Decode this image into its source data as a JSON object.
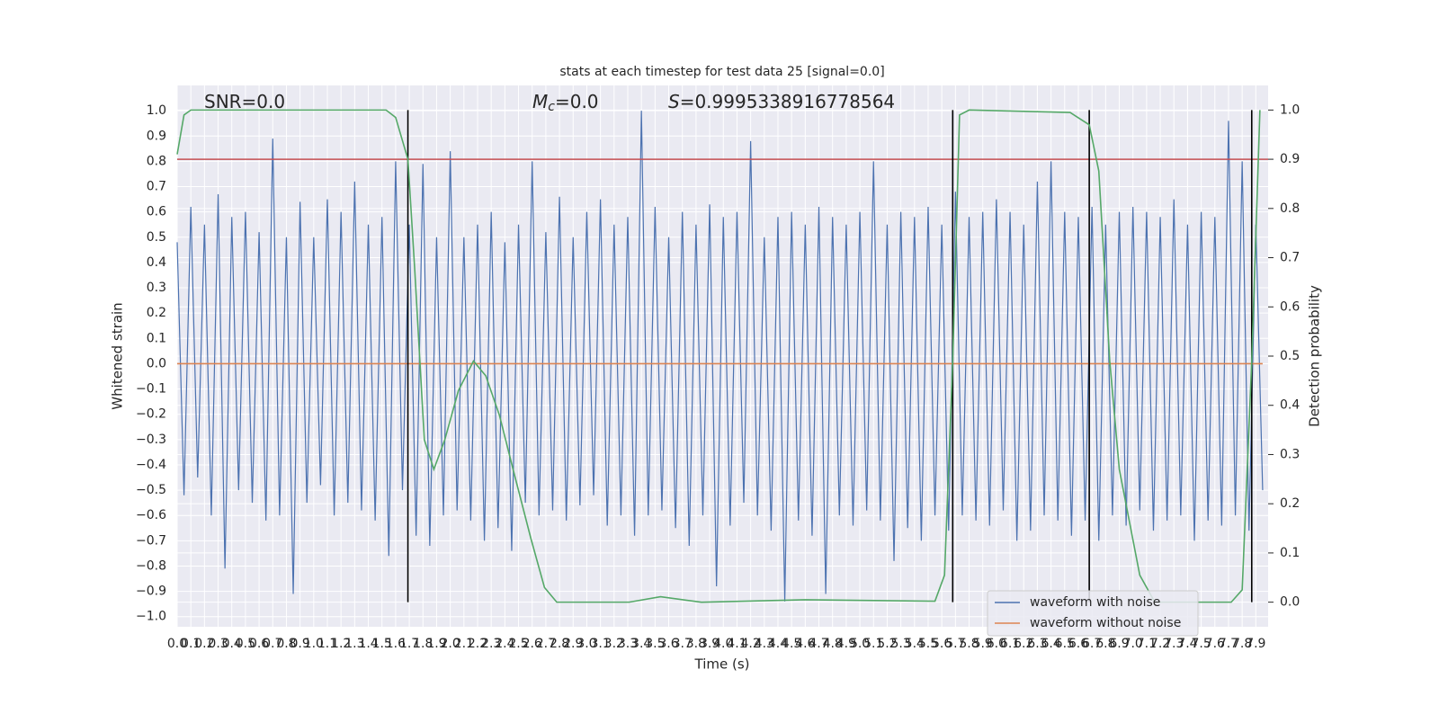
{
  "chart_data": {
    "type": "line",
    "title": "stats at each timestep for test data 25 [signal=0.0]",
    "x_label": "Time (s)",
    "y_label": "Whitened strain",
    "y2_label": "Detection probability",
    "annotations": [
      {
        "parts": [
          "SNR=0.0"
        ],
        "x": 0.2
      },
      {
        "parts": [
          "M",
          "c",
          "=0.0"
        ],
        "x": 2.6
      },
      {
        "parts": [
          "S",
          "=0.9995338916778564"
        ],
        "x": 3.6
      }
    ],
    "xlim": [
      0,
      7.99
    ],
    "ylim": [
      -1.04,
      1.1
    ],
    "y2lim": [
      -0.05,
      1.05
    ],
    "grid": true,
    "xticks": [
      {
        "value": 0,
        "label": "0.0"
      },
      0.1,
      0.2,
      0.3,
      0.4,
      0.5,
      0.6,
      0.7,
      0.8,
      0.9,
      {
        "value": 1,
        "label": "1.0"
      },
      1.1,
      1.2,
      1.3,
      1.4,
      1.5,
      1.6,
      1.7,
      1.8,
      1.9,
      {
        "value": 2,
        "label": "2.0"
      },
      2.1,
      2.2,
      2.3,
      2.4,
      2.5,
      2.6,
      2.7,
      2.8,
      2.9,
      {
        "value": 3,
        "label": "3.0"
      },
      3.1,
      3.2,
      3.3,
      3.4,
      3.5,
      3.6,
      3.7,
      3.8,
      3.9,
      {
        "value": 4,
        "label": "4.0"
      },
      4.1,
      4.2,
      4.3,
      4.4,
      4.5,
      4.6,
      4.7,
      4.8,
      4.9,
      {
        "value": 5,
        "label": "5.0"
      },
      5.1,
      5.2,
      5.3,
      5.4,
      5.5,
      5.6,
      5.7,
      5.8,
      5.9,
      {
        "value": 6,
        "label": "6.0"
      },
      6.1,
      6.2,
      6.3,
      6.4,
      6.5,
      6.6,
      6.7,
      6.8,
      6.9,
      {
        "value": 7,
        "label": "7.0"
      },
      7.1,
      7.2,
      7.3,
      7.4,
      7.5,
      7.6,
      7.7,
      7.8,
      7.9
    ],
    "yticks": [
      {
        "value": -1,
        "label": "−1.0"
      },
      {
        "value": -0.9,
        "label": "−0.9"
      },
      {
        "value": -0.8,
        "label": "−0.8"
      },
      {
        "value": -0.7,
        "label": "−0.7"
      },
      {
        "value": -0.6,
        "label": "−0.6"
      },
      {
        "value": -0.5,
        "label": "−0.5"
      },
      {
        "value": -0.4,
        "label": "−0.4"
      },
      {
        "value": -0.3,
        "label": "−0.3"
      },
      {
        "value": -0.2,
        "label": "−0.2"
      },
      {
        "value": -0.1,
        "label": "−0.1"
      },
      {
        "value": 0,
        "label": "0.0"
      },
      0.1,
      0.2,
      0.3,
      0.4,
      0.5,
      0.6,
      0.7,
      0.8,
      0.9,
      {
        "value": 1,
        "label": "1.0"
      }
    ],
    "y2ticks": [
      {
        "value": 0,
        "label": "0.0"
      },
      0.1,
      0.2,
      0.3,
      0.4,
      0.5,
      0.6,
      0.7,
      0.8,
      0.9,
      {
        "value": 1,
        "label": "1.0"
      }
    ],
    "series": [
      {
        "name": "waveform with noise",
        "color": "#4c72b0",
        "x": [
          0,
          0.05,
          0.1,
          0.15,
          0.2,
          0.25,
          0.3,
          0.35,
          0.4,
          0.45,
          0.5,
          0.55,
          0.6,
          0.65,
          0.7,
          0.75,
          0.8,
          0.85,
          0.9,
          0.95,
          1,
          1.05,
          1.1,
          1.15,
          1.2,
          1.25,
          1.3,
          1.35,
          1.4,
          1.45,
          1.5,
          1.55,
          1.6,
          1.65,
          1.7,
          1.75,
          1.8,
          1.85,
          1.9,
          1.95,
          2,
          2.05,
          2.1,
          2.15,
          2.2,
          2.25,
          2.3,
          2.35,
          2.4,
          2.45,
          2.5,
          2.55,
          2.6,
          2.65,
          2.7,
          2.75,
          2.8,
          2.85,
          2.9,
          2.95,
          3,
          3.05,
          3.1,
          3.15,
          3.2,
          3.25,
          3.3,
          3.35,
          3.4,
          3.45,
          3.5,
          3.55,
          3.6,
          3.65,
          3.7,
          3.75,
          3.8,
          3.85,
          3.9,
          3.95,
          4,
          4.05,
          4.1,
          4.15,
          4.2,
          4.25,
          4.3,
          4.35,
          4.4,
          4.45,
          4.5,
          4.55,
          4.6,
          4.65,
          4.7,
          4.75,
          4.8,
          4.85,
          4.9,
          4.95,
          5,
          5.05,
          5.1,
          5.15,
          5.2,
          5.25,
          5.3,
          5.35,
          5.4,
          5.45,
          5.5,
          5.55,
          5.6,
          5.65,
          5.7,
          5.75,
          5.8,
          5.85,
          5.9,
          5.95,
          6,
          6.05,
          6.1,
          6.15,
          6.2,
          6.25,
          6.3,
          6.35,
          6.4,
          6.45,
          6.5,
          6.55,
          6.6,
          6.65,
          6.7,
          6.75,
          6.8,
          6.85,
          6.9,
          6.95,
          7,
          7.05,
          7.1,
          7.15,
          7.2,
          7.25,
          7.3,
          7.35,
          7.4,
          7.45,
          7.5,
          7.55,
          7.6,
          7.65,
          7.7,
          7.75,
          7.8,
          7.85,
          7.9,
          7.95
        ],
        "values": [
          0.48,
          -0.52,
          0.62,
          -0.45,
          0.55,
          -0.6,
          0.67,
          -0.81,
          0.58,
          -0.5,
          0.6,
          -0.55,
          0.52,
          -0.62,
          0.89,
          -0.6,
          0.5,
          -0.91,
          0.64,
          -0.55,
          0.5,
          -0.48,
          0.65,
          -0.6,
          0.6,
          -0.55,
          0.72,
          -0.58,
          0.55,
          -0.62,
          0.58,
          -0.76,
          0.8,
          -0.5,
          0.55,
          -0.68,
          0.79,
          -0.72,
          0.5,
          -0.6,
          0.84,
          -0.58,
          0.5,
          -0.62,
          0.55,
          -0.7,
          0.6,
          -0.65,
          0.48,
          -0.74,
          0.55,
          -0.55,
          0.8,
          -0.6,
          0.52,
          -0.58,
          0.66,
          -0.62,
          0.5,
          -0.56,
          0.6,
          -0.52,
          0.65,
          -0.64,
          0.55,
          -0.6,
          0.58,
          -0.68,
          1.0,
          -0.6,
          0.62,
          -0.58,
          0.5,
          -0.65,
          0.6,
          -0.72,
          0.55,
          -0.6,
          0.63,
          -0.88,
          0.58,
          -0.64,
          0.6,
          -0.55,
          0.88,
          -0.6,
          0.5,
          -0.66,
          0.58,
          -0.94,
          0.6,
          -0.62,
          0.55,
          -0.68,
          0.62,
          -0.91,
          0.58,
          -0.6,
          0.55,
          -0.64,
          0.6,
          -0.58,
          0.8,
          -0.62,
          0.55,
          -0.78,
          0.6,
          -0.65,
          0.58,
          -0.7,
          0.62,
          -0.6,
          0.55,
          -0.66,
          0.68,
          -0.6,
          0.58,
          -0.62,
          0.6,
          -0.64,
          0.65,
          -0.58,
          0.6,
          -0.7,
          0.55,
          -0.66,
          0.72,
          -0.6,
          0.8,
          -0.62,
          0.6,
          -0.68,
          0.58,
          -0.62,
          0.62,
          -0.7,
          0.55,
          -0.6,
          0.6,
          -0.64,
          0.62,
          -0.58,
          0.6,
          -0.66,
          0.58,
          -0.62,
          0.65,
          -0.6,
          0.55,
          -0.7,
          0.6,
          -0.62,
          0.58,
          -0.64,
          0.96,
          -0.6,
          0.8,
          -0.66,
          0.55,
          -0.5
        ]
      },
      {
        "name": "waveform without noise",
        "color": "#dd8452",
        "x": [
          0,
          7.95
        ],
        "values": [
          0,
          0
        ]
      },
      {
        "color": "#55a868",
        "axis": "y2",
        "x": [
          0,
          0.05,
          0.1,
          1.53,
          1.6,
          1.69,
          1.74,
          1.81,
          1.88,
          1.96,
          2.06,
          2.17,
          2.26,
          2.36,
          2.46,
          2.59,
          2.69,
          2.78,
          3.31,
          3.54,
          3.84,
          4.6,
          5.55,
          5.62,
          5.68,
          5.73,
          5.8,
          6.54,
          6.68,
          6.75,
          6.83,
          6.9,
          7.05,
          7.16,
          7.72,
          7.8,
          7.87,
          7.93
        ],
        "values": [
          0.91,
          0.99,
          1.0,
          1.0,
          0.985,
          0.9,
          0.675,
          0.33,
          0.27,
          0.33,
          0.43,
          0.49,
          0.46,
          0.38,
          0.27,
          0.13,
          0.03,
          0.0,
          0.0,
          0.011,
          0.0,
          0.005,
          0.002,
          0.055,
          0.49,
          0.99,
          1.0,
          0.995,
          0.97,
          0.876,
          0.49,
          0.27,
          0.055,
          0.0,
          0.0,
          0.025,
          0.49,
          1.0
        ]
      }
    ],
    "hlines": [
      {
        "value": 0.9,
        "axis": "y2",
        "color": "#c44e52"
      }
    ],
    "vlines": {
      "x": [
        1.69,
        5.68,
        6.68,
        7.87
      ],
      "range": [
        0,
        1
      ],
      "axis": "y2",
      "color": "#000000"
    },
    "legend": "lower right"
  }
}
